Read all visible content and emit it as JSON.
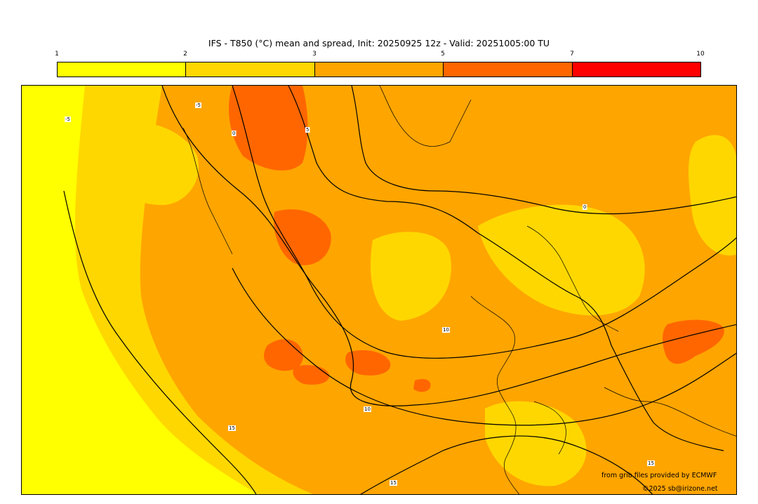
{
  "title": "IFS - T850 (°C) mean and spread, Init: 20250925 12z - Valid: 20251005:00 TU",
  "legend": {
    "ticks": [
      "1",
      "2",
      "3",
      "5",
      "7",
      "10"
    ],
    "colors": [
      "#ffff00",
      "#ffd700",
      "#ffa500",
      "#ff6600",
      "#ff0000"
    ]
  },
  "map": {
    "contour_labels": [
      "-5",
      "0",
      "5",
      "10",
      "15",
      "10",
      "15",
      "15",
      "-5",
      "0"
    ],
    "spread_colors": {
      "band1": "#ffff00",
      "band2": "#ffd700",
      "band3": "#ffa500",
      "band4": "#ff6600"
    }
  },
  "credits": {
    "source": "from grib files provided by ECMWF",
    "copyright": "©2025 sb@irizone.net"
  }
}
